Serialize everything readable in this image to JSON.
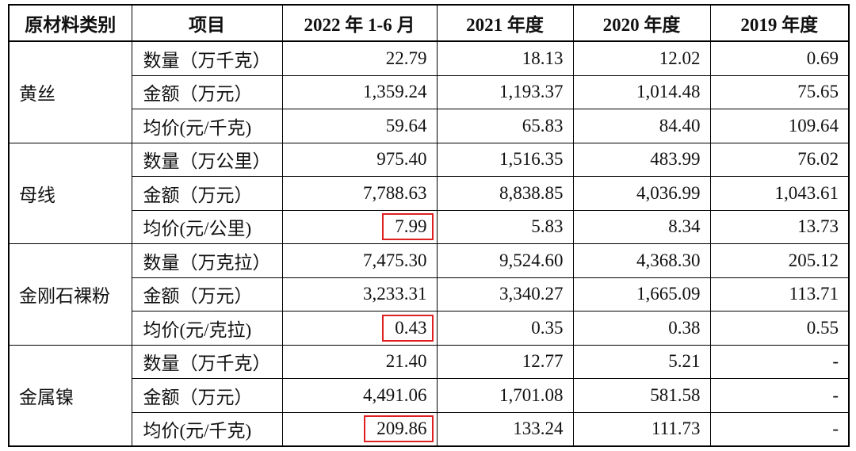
{
  "table": {
    "header": [
      "原材料类别",
      "项目",
      "2022 年 1-6 月",
      "2021 年度",
      "2020 年度",
      "2019 年度"
    ],
    "groups": [
      {
        "category": "黄丝",
        "rows": [
          [
            "数量（万千克）",
            "22.79",
            "18.13",
            "12.02",
            "0.69"
          ],
          [
            "金额（万元）",
            "1,359.24",
            "1,193.37",
            "1,014.48",
            "75.65"
          ],
          [
            "均价(元/千克)",
            "59.64",
            "65.83",
            "84.40",
            "109.64"
          ]
        ]
      },
      {
        "category": "母线",
        "rows": [
          [
            "数量（万公里）",
            "975.40",
            "1,516.35",
            "483.99",
            "76.02"
          ],
          [
            "金额（万元）",
            "7,788.63",
            "8,838.85",
            "4,036.99",
            "1,043.61"
          ],
          [
            "均价(元/公里)",
            "7.99",
            "5.83",
            "8.34",
            "13.73"
          ]
        ]
      },
      {
        "category": "金刚石裸粉",
        "rows": [
          [
            "数量（万克拉）",
            "7,475.30",
            "9,524.60",
            "4,368.30",
            "205.12"
          ],
          [
            "金额（万元）",
            "3,233.31",
            "3,340.27",
            "1,665.09",
            "113.71"
          ],
          [
            "均价(元/克拉)",
            "0.43",
            "0.35",
            "0.38",
            "0.55"
          ]
        ]
      },
      {
        "category": "金属镍",
        "rows": [
          [
            "数量（万千克）",
            "21.40",
            "12.77",
            "5.21",
            "-"
          ],
          [
            "金额（万元）",
            "4,491.06",
            "1,701.08",
            "581.58",
            "-"
          ],
          [
            "均价(元/千克)",
            "209.86",
            "133.24",
            "111.73",
            "-"
          ]
        ]
      }
    ]
  }
}
